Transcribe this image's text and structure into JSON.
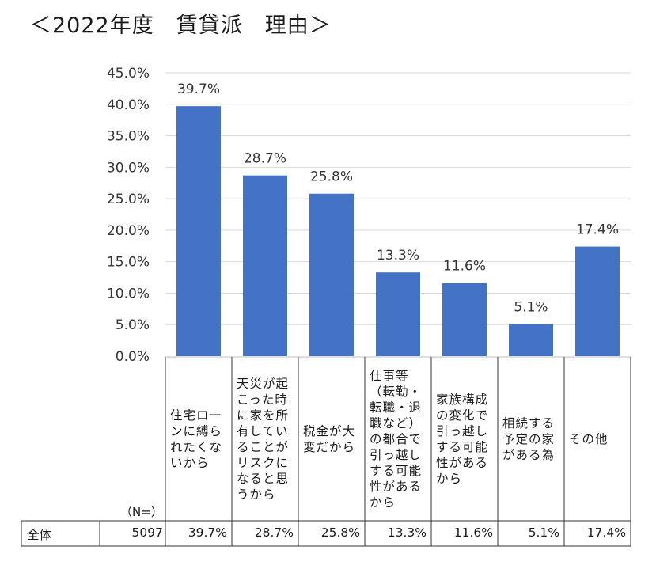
{
  "title": "＜2022年度　賃貸派　理由＞",
  "chart_data": {
    "type": "bar",
    "categories": [
      "住宅ローンに縛られたくないから",
      "天災が起こった時に家を所有していることがリスクになると思うから",
      "税金が大変だから",
      "仕事等（転勤・転職・退職など）の都合で引っ越しする可能性があるから",
      "家族構成の変化で引っ越しする可能性があるから",
      "相続する予定の家がある為",
      "その他"
    ],
    "values": [
      39.7,
      28.7,
      25.8,
      13.3,
      11.6,
      5.1,
      17.4
    ],
    "value_labels": [
      "39.7%",
      "28.7%",
      "25.8%",
      "13.3%",
      "11.6%",
      "5.1%",
      "17.4%"
    ],
    "yticks": [
      "0.0%",
      "5.0%",
      "10.0%",
      "15.0%",
      "20.0%",
      "25.0%",
      "30.0%",
      "35.0%",
      "40.0%",
      "45.0%"
    ],
    "ylim": [
      0,
      45
    ],
    "grid": true,
    "bar_color": "#4472c4"
  },
  "table": {
    "n_label": "（N=）",
    "row_label": "全体",
    "n_value": "5097",
    "cells": [
      "39.7%",
      "28.7%",
      "25.8%",
      "13.3%",
      "11.6%",
      "5.1%",
      "17.4%"
    ]
  }
}
